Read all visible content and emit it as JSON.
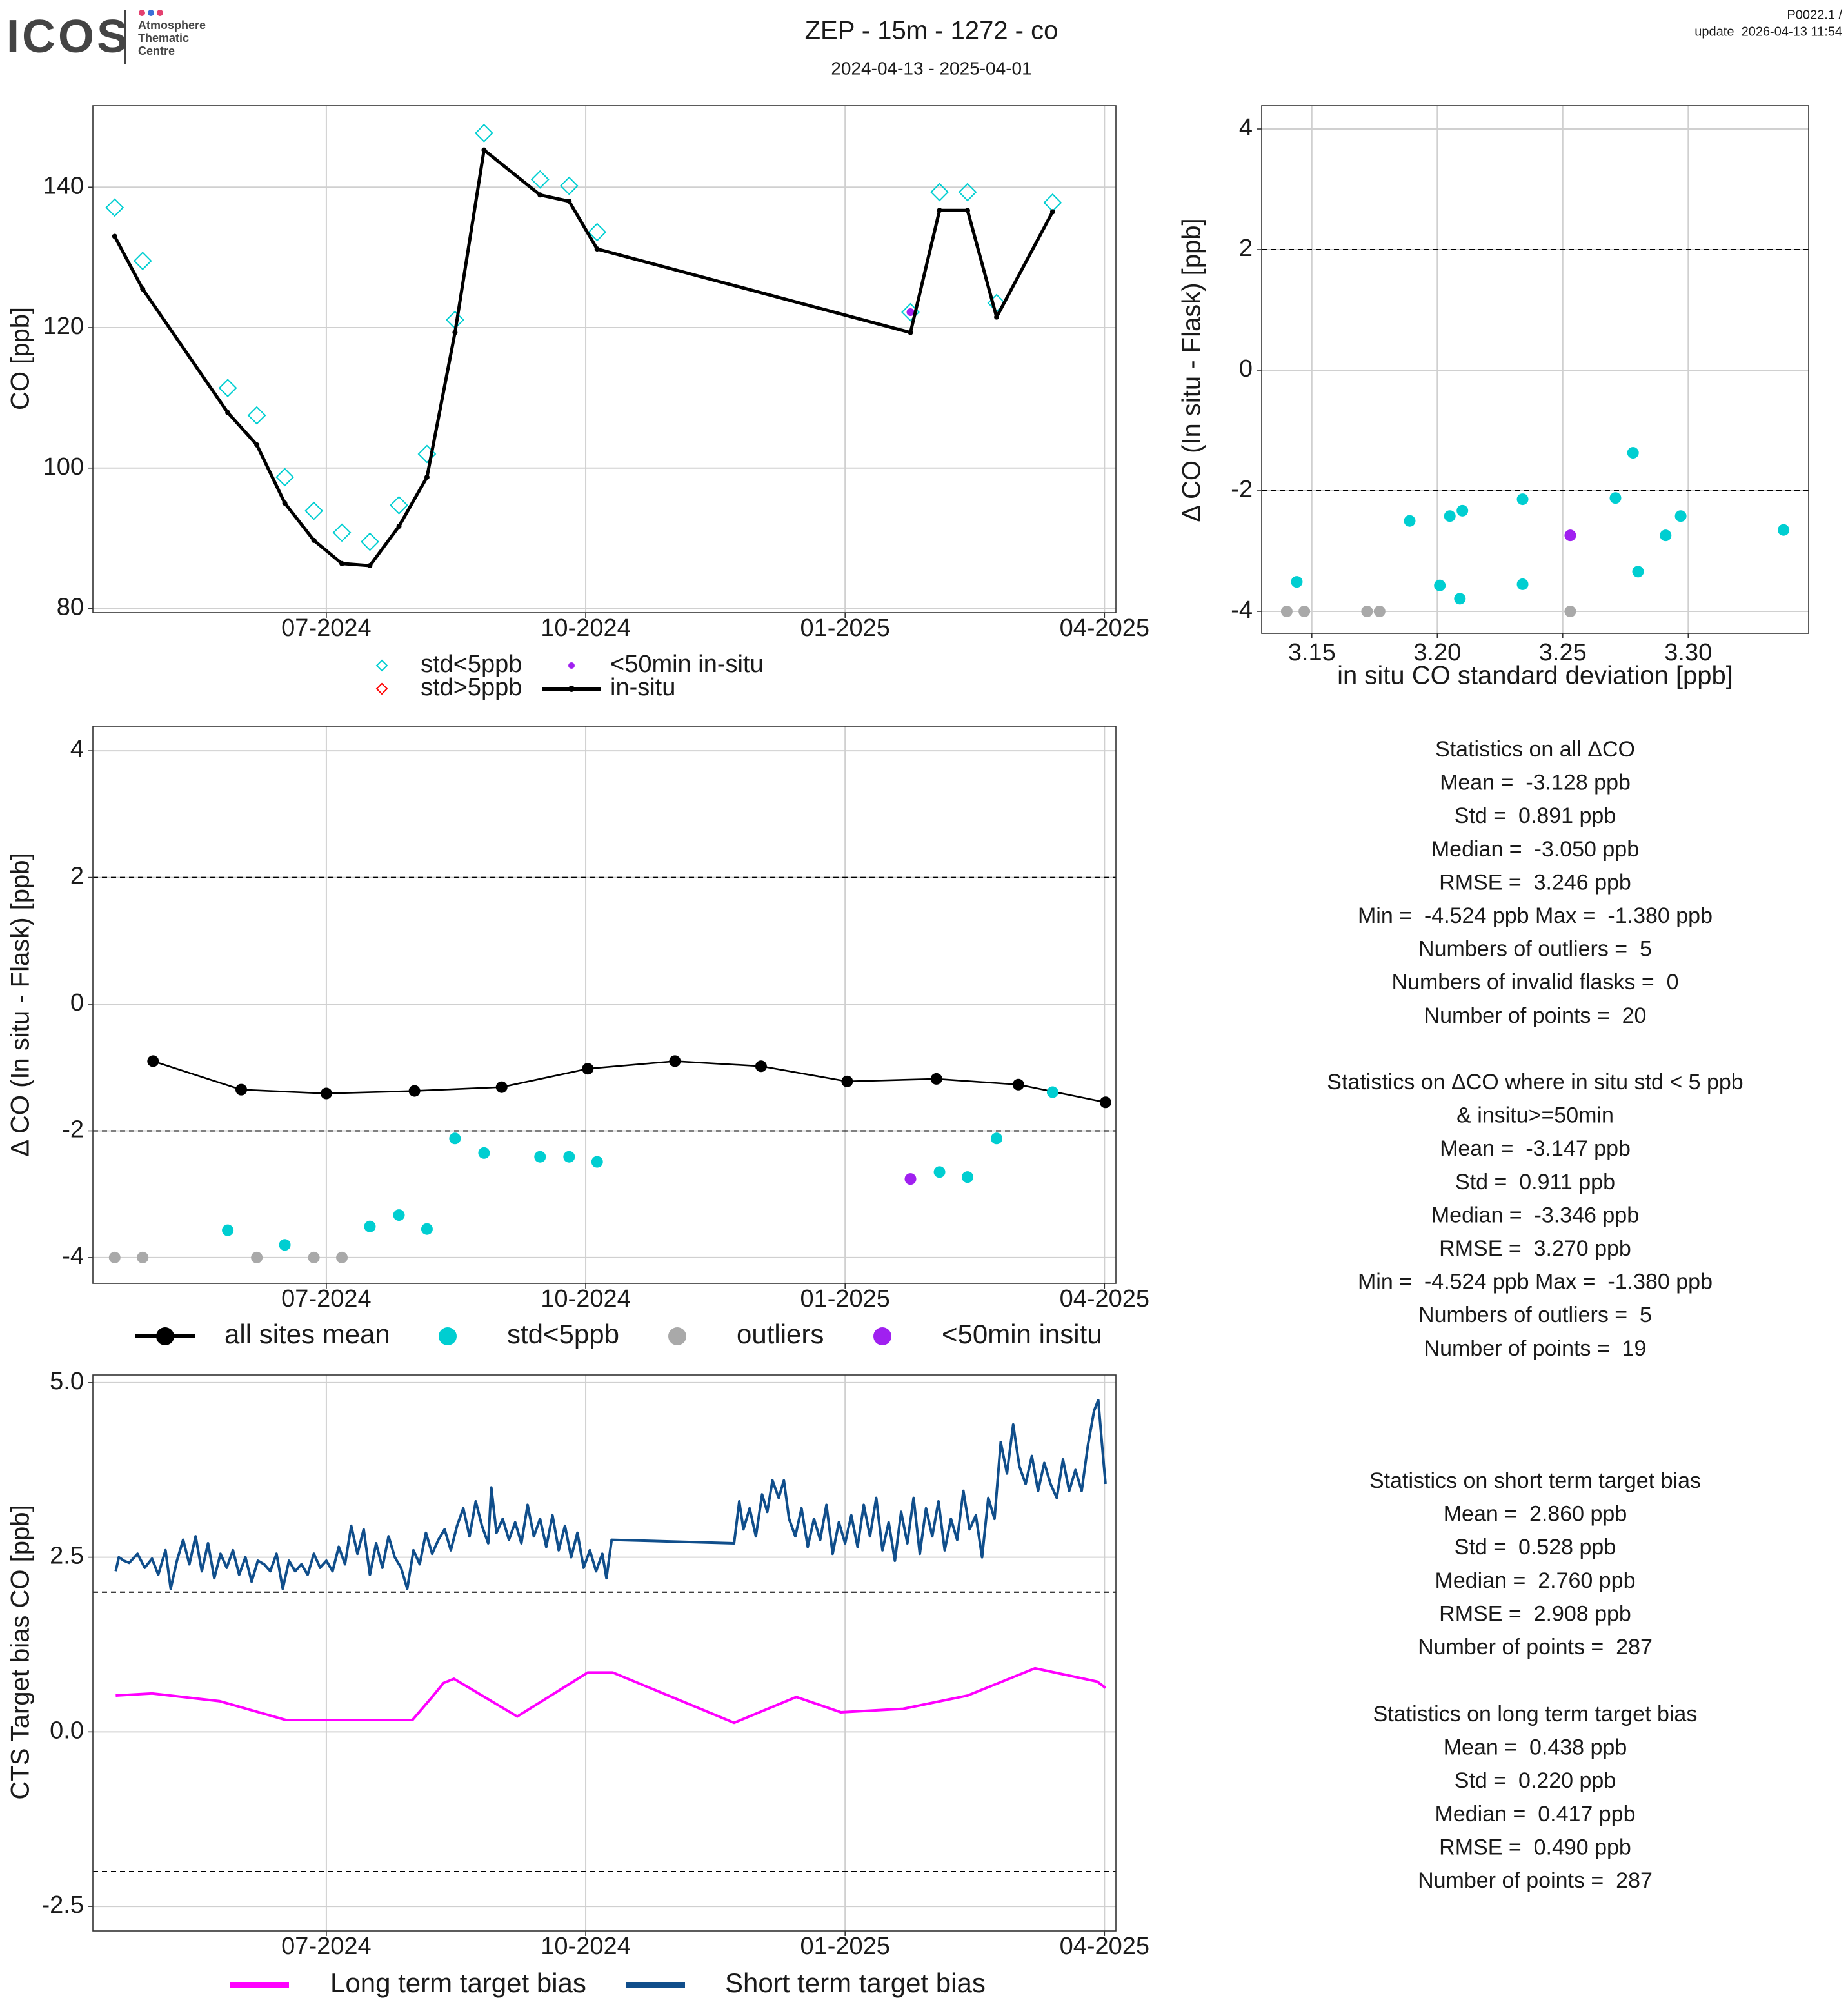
{
  "header": {
    "logo": "ICOS",
    "logo_lines": [
      "Atmosphere",
      "Thematic",
      "Centre"
    ],
    "title": "ZEP - 15m - 1272 - co",
    "subtitle": "2024-04-13 - 2025-04-01",
    "version": "P0022.1 /",
    "update": "update  2026-04-13 11:54"
  },
  "chart_data": [
    {
      "type": "line",
      "ylabel": "CO [ppb]",
      "xlim": [
        2024.275,
        2025.261
      ],
      "xticks": [
        {
          "value": 2024.5,
          "label": "07-2024"
        },
        {
          "value": 2024.75,
          "label": "10-2024"
        },
        {
          "value": 2025.0,
          "label": "01-2025"
        },
        {
          "value": 2025.25,
          "label": "04-2025"
        }
      ],
      "ylim": [
        79.4,
        151.6
      ],
      "yticks": [
        80,
        100,
        120,
        140
      ],
      "grid": true,
      "series": [
        {
          "name": "std<5ppb",
          "color": "#00CED1",
          "marker": "diamond",
          "x": [
            2024.296,
            2024.323,
            2024.405,
            2024.433,
            2024.46,
            2024.488,
            2024.515,
            2024.542,
            2024.57,
            2024.597,
            2024.624,
            2024.652,
            2024.706,
            2024.734,
            2024.761,
            2025.063,
            2025.091,
            2025.118,
            2025.146,
            2025.2
          ],
          "values": [
            137.1,
            129.5,
            111.4,
            107.5,
            98.7,
            93.9,
            90.8,
            89.5,
            94.7,
            102.0,
            121.1,
            147.7,
            141.1,
            140.2,
            133.6,
            122.2,
            139.3,
            139.3,
            123.5,
            137.8
          ]
        },
        {
          "name": "std>5ppb",
          "color": "#FF0000",
          "marker": "diamond",
          "x": [],
          "values": []
        },
        {
          "name": "<50min in-situ",
          "color": "#A020F0",
          "marker": "dot",
          "x": [
            2025.063
          ],
          "values": [
            122.2
          ]
        },
        {
          "name": "in-situ",
          "color": "#000000",
          "marker": "line+point",
          "x": [
            2024.296,
            2024.323,
            2024.405,
            2024.433,
            2024.46,
            2024.488,
            2024.515,
            2024.542,
            2024.57,
            2024.597,
            2024.624,
            2024.652,
            2024.706,
            2024.734,
            2024.761,
            2025.063,
            2025.091,
            2025.118,
            2025.146,
            2025.2
          ],
          "values": [
            133.0,
            125.5,
            107.9,
            103.3,
            95.0,
            89.7,
            86.4,
            86.1,
            91.7,
            98.7,
            119.3,
            145.3,
            138.9,
            138.0,
            131.2,
            119.3,
            136.7,
            136.7,
            121.5,
            136.5
          ]
        }
      ]
    },
    {
      "type": "scatter",
      "xlabel": "in situ CO standard deviation [ppb]",
      "ylabel": "Δ CO (In situ - Flask) [ppb]",
      "xlim": [
        3.13,
        3.348
      ],
      "xticks": [
        3.15,
        {
          "value": 3.2,
          "label": "3.20"
        },
        3.25,
        {
          "value": 3.3,
          "label": "3.30"
        }
      ],
      "ylim": [
        -4.364,
        4.385
      ],
      "yticks": [
        -4,
        -2,
        0,
        2,
        4
      ],
      "grid": true,
      "hlines": [
        -2,
        2
      ],
      "series": [
        {
          "name": "std<5ppb",
          "color": "#00CED1",
          "marker": "circle",
          "x": [
            3.144,
            3.189,
            3.205,
            3.21,
            3.201,
            3.209,
            3.234,
            3.234,
            3.271,
            3.278,
            3.28,
            3.291,
            3.297,
            3.338
          ],
          "values": [
            -3.51,
            -2.5,
            -2.42,
            -2.33,
            -3.57,
            -3.79,
            -2.14,
            -3.55,
            -2.12,
            -1.37,
            -3.34,
            -2.74,
            -2.42,
            -2.65
          ]
        },
        {
          "name": "outliers",
          "color": "#A9A9A9",
          "marker": "circle",
          "x": [
            3.14,
            3.147,
            3.172,
            3.177,
            3.253
          ],
          "values": [
            -4.0,
            -4.0,
            -4.0,
            -4.0,
            -4.0
          ]
        },
        {
          "name": "<50min insitu",
          "color": "#A020F0",
          "marker": "circle",
          "x": [
            3.253
          ],
          "values": [
            -2.74
          ]
        }
      ]
    },
    {
      "type": "line",
      "ylabel": "Δ CO (In situ - Flask) [ppb]",
      "xlim": [
        2024.275,
        2025.261
      ],
      "xticks": [
        {
          "value": 2024.5,
          "label": "07-2024"
        },
        {
          "value": 2024.75,
          "label": "10-2024"
        },
        {
          "value": 2025.0,
          "label": "01-2025"
        },
        {
          "value": 2025.25,
          "label": "04-2025"
        }
      ],
      "ylim": [
        -4.408,
        4.388
      ],
      "yticks": [
        -4,
        -2,
        0,
        2,
        4
      ],
      "grid": true,
      "hlines": [
        -2,
        2
      ],
      "series": [
        {
          "name": "all sites mean",
          "color": "#000000",
          "marker": "line+circle",
          "x": [
            2024.333,
            2024.418,
            2024.5,
            2024.585,
            2024.669,
            2024.752,
            2024.836,
            2024.919,
            2025.002,
            2025.088,
            2025.167,
            2025.251
          ],
          "values": [
            -0.9,
            -1.35,
            -1.41,
            -1.37,
            -1.31,
            -1.02,
            -0.9,
            -0.98,
            -1.22,
            -1.18,
            -1.27,
            -1.55
          ]
        },
        {
          "name": "std<5ppb",
          "color": "#00CED1",
          "marker": "circle",
          "x": [
            2024.405,
            2024.46,
            2024.542,
            2024.57,
            2024.597,
            2024.624,
            2024.652,
            2024.706,
            2024.734,
            2024.761,
            2025.091,
            2025.118,
            2025.146,
            2025.2
          ],
          "values": [
            -3.57,
            -3.8,
            -3.51,
            -3.33,
            -3.55,
            -2.12,
            -2.35,
            -2.41,
            -2.41,
            -2.49,
            -2.65,
            -2.73,
            -2.12,
            -1.39
          ]
        },
        {
          "name": "outliers",
          "color": "#A9A9A9",
          "marker": "circle",
          "x": [
            2024.296,
            2024.323,
            2024.433,
            2024.488,
            2024.515
          ],
          "values": [
            -4.0,
            -4.0,
            -4.0,
            -4.0,
            -4.0
          ]
        },
        {
          "name": "<50min insitu",
          "color": "#A020F0",
          "marker": "circle",
          "x": [
            2025.063
          ],
          "values": [
            -2.76
          ]
        }
      ]
    },
    {
      "type": "line",
      "ylabel": "CTS Target bias CO [ppb]",
      "xlim": [
        2024.275,
        2025.261
      ],
      "xticks": [
        {
          "value": 2024.5,
          "label": "07-2024"
        },
        {
          "value": 2024.75,
          "label": "10-2024"
        },
        {
          "value": 2025.0,
          "label": "01-2025"
        },
        {
          "value": 2025.25,
          "label": "04-2025"
        }
      ],
      "ylim": [
        -2.85,
        5.11
      ],
      "yticks": [
        -2.5,
        {
          "value": 0,
          "label": "0.0"
        },
        2.5,
        {
          "value": 5,
          "label": "5.0"
        }
      ],
      "grid": true,
      "hlines": [
        -2,
        2
      ],
      "series": [
        {
          "name": "Long term target bias",
          "color": "#FF00FF",
          "marker": "line",
          "x": [
            2024.297,
            2024.332,
            2024.397,
            2024.461,
            2024.583,
            2024.602,
            2024.613,
            2024.623,
            2024.684,
            2024.752,
            2024.776,
            2024.893,
            2024.953,
            2024.996,
            2025.056,
            2025.118,
            2025.183,
            2025.243,
            2025.251
          ],
          "values": [
            0.52,
            0.55,
            0.44,
            0.17,
            0.17,
            0.5,
            0.7,
            0.76,
            0.22,
            0.85,
            0.85,
            0.13,
            0.5,
            0.28,
            0.33,
            0.52,
            0.91,
            0.72,
            0.63
          ]
        },
        {
          "name": "Short term target bias",
          "color": "#104E8B",
          "marker": "line",
          "x": [
            2024.297,
            2024.3,
            2024.305,
            2024.31,
            2024.318,
            2024.325,
            2024.332,
            2024.338,
            2024.345,
            2024.35,
            2024.356,
            2024.362,
            2024.368,
            2024.374,
            2024.38,
            2024.386,
            2024.392,
            2024.398,
            2024.404,
            2024.41,
            2024.416,
            2024.422,
            2024.428,
            2024.434,
            2024.44,
            2024.446,
            2024.452,
            2024.458,
            2024.464,
            2024.47,
            2024.476,
            2024.482,
            2024.488,
            2024.494,
            2024.5,
            2024.506,
            2024.512,
            2024.518,
            2024.524,
            2024.53,
            2024.536,
            2024.542,
            2024.548,
            2024.554,
            2024.56,
            2024.566,
            2024.572,
            2024.578,
            2024.584,
            2024.59,
            2024.596,
            2024.602,
            2024.608,
            2024.614,
            2024.62,
            2024.626,
            2024.632,
            2024.638,
            2024.644,
            2024.65,
            2024.656,
            2024.659,
            2024.664,
            2024.67,
            2024.676,
            2024.682,
            2024.688,
            2024.694,
            2024.7,
            2024.706,
            2024.712,
            2024.718,
            2024.724,
            2024.73,
            2024.736,
            2024.742,
            2024.748,
            2024.754,
            2024.76,
            2024.766,
            2024.77,
            2024.775,
            2024.893,
            2024.898,
            2024.902,
            2024.908,
            2024.914,
            2024.92,
            2024.925,
            2024.93,
            2024.936,
            2024.941,
            2024.946,
            2024.952,
            2024.958,
            2024.964,
            2024.97,
            2024.976,
            2024.982,
            2024.988,
            2024.994,
            2025.0,
            2025.006,
            2025.012,
            2025.018,
            2025.024,
            2025.03,
            2025.036,
            2025.042,
            2025.048,
            2025.054,
            2025.06,
            2025.066,
            2025.072,
            2025.078,
            2025.084,
            2025.09,
            2025.096,
            2025.102,
            2025.108,
            2025.114,
            2025.12,
            2025.126,
            2025.132,
            2025.138,
            2025.144,
            2025.15,
            2025.156,
            2025.162,
            2025.168,
            2025.174,
            2025.18,
            2025.186,
            2025.192,
            2025.198,
            2025.204,
            2025.21,
            2025.216,
            2025.222,
            2025.228,
            2025.234,
            2025.24,
            2025.244,
            2025.248,
            2025.251
          ],
          "values": [
            2.3,
            2.5,
            2.45,
            2.42,
            2.55,
            2.35,
            2.48,
            2.25,
            2.6,
            2.05,
            2.45,
            2.75,
            2.4,
            2.8,
            2.3,
            2.7,
            2.2,
            2.55,
            2.35,
            2.6,
            2.25,
            2.5,
            2.15,
            2.45,
            2.4,
            2.3,
            2.55,
            2.05,
            2.45,
            2.3,
            2.4,
            2.25,
            2.55,
            2.35,
            2.45,
            2.3,
            2.65,
            2.4,
            2.95,
            2.55,
            2.9,
            2.25,
            2.7,
            2.35,
            2.8,
            2.5,
            2.35,
            2.05,
            2.6,
            2.4,
            2.85,
            2.55,
            2.75,
            2.9,
            2.6,
            2.95,
            3.2,
            2.8,
            3.3,
            2.95,
            2.7,
            3.5,
            2.85,
            3.05,
            2.75,
            3.0,
            2.7,
            3.25,
            2.8,
            3.05,
            2.65,
            3.1,
            2.6,
            2.95,
            2.5,
            2.85,
            2.35,
            2.6,
            2.3,
            2.55,
            2.2,
            2.75,
            2.7,
            3.3,
            2.9,
            3.2,
            2.8,
            3.4,
            3.15,
            3.6,
            3.35,
            3.6,
            3.05,
            2.8,
            3.2,
            2.65,
            3.05,
            2.75,
            3.25,
            2.55,
            3.0,
            2.7,
            3.1,
            2.65,
            3.25,
            2.8,
            3.35,
            2.6,
            3.0,
            2.45,
            3.15,
            2.7,
            3.35,
            2.55,
            3.2,
            2.8,
            3.3,
            2.6,
            3.05,
            2.75,
            3.45,
            2.9,
            3.1,
            2.5,
            3.35,
            3.05,
            4.15,
            3.7,
            4.4,
            3.8,
            3.55,
            3.95,
            3.45,
            3.85,
            3.55,
            3.35,
            3.9,
            3.45,
            3.75,
            3.45,
            4.1,
            4.6,
            4.75,
            4.05,
            3.55
          ]
        }
      ]
    }
  ],
  "stats": [
    [
      "Statistics on all ΔCO",
      "Mean =  -3.128 ppb",
      "Std =  0.891 ppb",
      "Median =  -3.050 ppb",
      "RMSE =  3.246 ppb",
      "Min =  -4.524 ppb Max =  -1.380 ppb",
      "Numbers of outliers =  5",
      "Numbers of invalid flasks =  0",
      "Number of points =  20"
    ],
    [
      "Statistics on ΔCO where in situ std < 5 ppb",
      "& insitu>=50min",
      "Mean =  -3.147 ppb",
      "Std =  0.911 ppb",
      "Median =  -3.346 ppb",
      "RMSE =  3.270 ppb",
      "Min =  -4.524 ppb Max =  -1.380 ppb",
      "Numbers of outliers =  5",
      "Number of points =  19"
    ],
    [
      "Statistics on short term target bias",
      "Mean =  2.860 ppb",
      "Std =  0.528 ppb",
      "Median =  2.760 ppb",
      "RMSE =  2.908 ppb",
      "Number of points =  287"
    ],
    [
      "Statistics on long term target bias",
      "Mean =  0.438 ppb",
      "Std =  0.220 ppb",
      "Median =  0.417 ppb",
      "RMSE =  0.490 ppb",
      "Number of points =  287"
    ]
  ]
}
